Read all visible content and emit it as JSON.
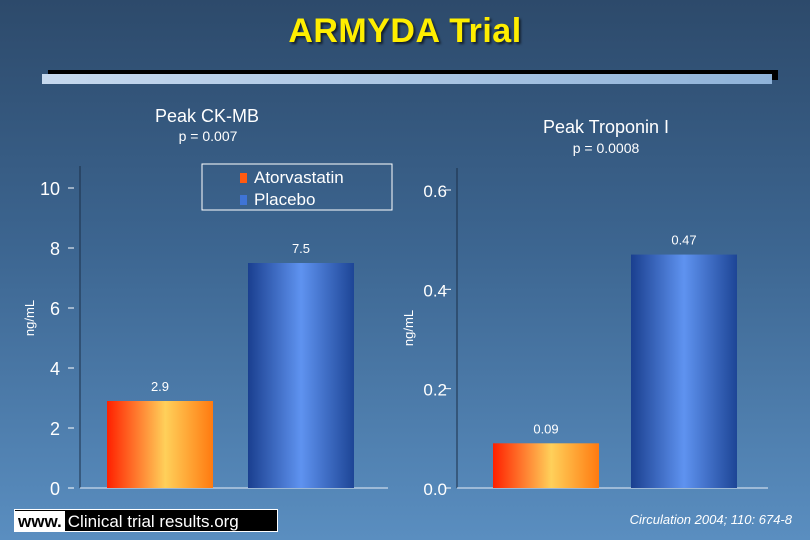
{
  "title": "ARMYDA Trial",
  "legend": {
    "items": [
      {
        "label": "Atorvastatin",
        "color": "#ff5a10"
      },
      {
        "label": "Placebo",
        "color": "#3f74d6"
      }
    ],
    "placement": "top-center"
  },
  "footer": {
    "www": "www.",
    "site": "Clinical trial results.org",
    "citation": "Circulation 2004; 110: 674-8"
  },
  "chart_data": [
    {
      "type": "bar",
      "title": "Peak CK-MB",
      "subtitle": "p = 0.007",
      "ylabel": "ng/mL",
      "xlabel": "",
      "ylim": [
        0,
        10
      ],
      "yticks": [
        0,
        2,
        4,
        6,
        8,
        10
      ],
      "ytick_labels": [
        "0",
        "2",
        "4",
        "6",
        "8",
        "10"
      ],
      "categories": [
        "Atorvastatin",
        "Placebo"
      ],
      "values": [
        2.9,
        7.5
      ],
      "value_labels": [
        "2.9",
        "7.5"
      ],
      "grid": false
    },
    {
      "type": "bar",
      "title": "Peak Troponin I",
      "subtitle": "p = 0.0008",
      "ylabel": "ng/mL",
      "xlabel": "",
      "ylim": [
        0,
        0.6
      ],
      "yticks": [
        0,
        0.2,
        0.4,
        0.6
      ],
      "ytick_labels": [
        "0.0",
        "0.2",
        "0.4",
        "0.6"
      ],
      "categories": [
        "Atorvastatin",
        "Placebo"
      ],
      "values": [
        0.09,
        0.47
      ],
      "value_labels": [
        "0.09",
        "0.47"
      ],
      "grid": false
    }
  ]
}
